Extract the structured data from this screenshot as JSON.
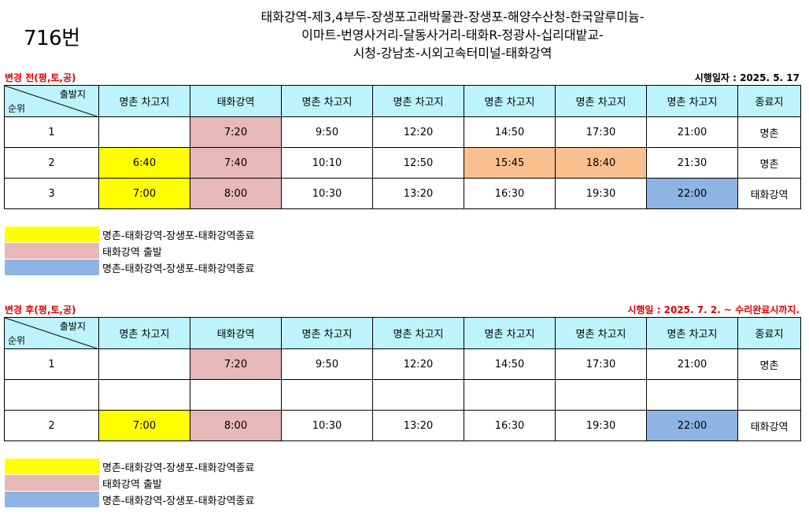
{
  "route": "716번",
  "route_desc": [
    "태화강역-제3,4부두-장생포고래박물관-장생포-해양수산청-한국알루미늄-",
    "이마트-번영사거리-달동사거리-태화R-정광사-십리대밭교-",
    "시청-강남초-시외고속터미널-태화강역"
  ],
  "colors": {
    "yellow": "#ffff00",
    "pink": "#e6b8b7",
    "orange": "#fac090",
    "blue": "#8db4e2",
    "header": "#bdf3fb",
    "title_red": "#e00000"
  },
  "before": {
    "title": "변경 전(평,토,공)",
    "date": "시행일자 : 2025. 5. 17",
    "corner_top": "출발지",
    "corner_bot": "순위",
    "headers": [
      "명촌 차고지",
      "태화강역",
      "명촌 차고지",
      "명촌 차고지",
      "명촌 차고지",
      "명촌 차고지",
      "명촌 차고지",
      "종료지"
    ],
    "rows": [
      {
        "rank": "1",
        "cells": [
          "",
          "7:20",
          "9:50",
          "12:20",
          "14:50",
          "17:30",
          "21:00",
          "명촌"
        ],
        "colors": [
          "",
          "pink",
          "",
          "",
          "",
          "",
          "",
          ""
        ]
      },
      {
        "rank": "2",
        "cells": [
          "6:40",
          "7:40",
          "10:10",
          "12:50",
          "15:45",
          "18:40",
          "21:30",
          "명촌"
        ],
        "colors": [
          "yellow",
          "pink",
          "",
          "",
          "orange",
          "orange",
          "",
          ""
        ]
      },
      {
        "rank": "3",
        "cells": [
          "7:00",
          "8:00",
          "10:30",
          "13:20",
          "16:30",
          "19:30",
          "22:00",
          "태화강역"
        ],
        "colors": [
          "yellow",
          "pink",
          "",
          "",
          "",
          "",
          "blue",
          ""
        ]
      }
    ],
    "legend": [
      {
        "color": "yellow",
        "label": "명촌-태화강역-장생포-태화강역종료"
      },
      {
        "color": "pink",
        "label": "태화강역 출발"
      },
      {
        "color": "blue",
        "label": "명촌-태화강역-장생포-태화강역종료"
      }
    ]
  },
  "after": {
    "title": "변경 후(평,토,공)",
    "date": "시행일 : 2025. 7. 2. ~ 수리완료시까지.",
    "corner_top": "출발지",
    "corner_bot": "순위",
    "headers": [
      "명촌 차고지",
      "태화강역",
      "명촌 차고지",
      "명촌 차고지",
      "명촌 차고지",
      "명촌 차고지",
      "명촌 차고지",
      "종료지"
    ],
    "rows": [
      {
        "rank": "1",
        "cells": [
          "",
          "7:20",
          "9:50",
          "12:20",
          "14:50",
          "17:30",
          "21:00",
          "명촌"
        ],
        "colors": [
          "",
          "pink",
          "",
          "",
          "",
          "",
          "",
          ""
        ]
      },
      {
        "rank": "",
        "cells": [
          "",
          "",
          "",
          "",
          "",
          "",
          "",
          ""
        ],
        "colors": [
          "",
          "",
          "",
          "",
          "",
          "",
          "",
          ""
        ]
      },
      {
        "rank": "2",
        "cells": [
          "7:00",
          "8:00",
          "10:30",
          "13:20",
          "16:30",
          "19:30",
          "22:00",
          "태화강역"
        ],
        "colors": [
          "yellow",
          "pink",
          "",
          "",
          "",
          "",
          "blue",
          ""
        ]
      }
    ],
    "legend": [
      {
        "color": "yellow",
        "label": "명촌-태화강역-장생포-태화강역종료"
      },
      {
        "color": "pink",
        "label": "태화강역 출발"
      },
      {
        "color": "blue",
        "label": "명촌-태화강역-장생포-태화강역종료"
      }
    ]
  }
}
